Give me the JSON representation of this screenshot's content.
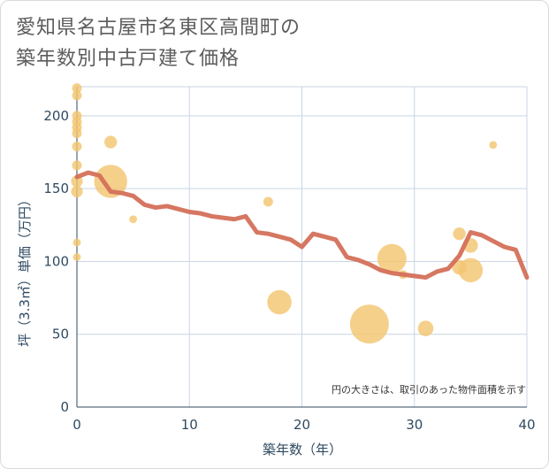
{
  "header": {
    "title_line1": "愛知県名古屋市名東区高間町の",
    "title_line2": "築年数別中古戸建て価格"
  },
  "chart_data": {
    "type": "scatter",
    "xlabel": "築年数（年）",
    "ylabel": "坪（3.3㎡）単価（万円）",
    "xlim": [
      0,
      40
    ],
    "ylim": [
      0,
      220
    ],
    "xticks": [
      "0",
      "10",
      "20",
      "30",
      "40"
    ],
    "yticks": [
      "0",
      "50",
      "100",
      "150",
      "200"
    ],
    "grid": true,
    "note": "円の大きさは、取引のあった物件面積を示す",
    "colors": {
      "bubble": "#f2c46e",
      "line": "#d4705a",
      "grid": "#c9d6e3",
      "text": "#2f4a61"
    },
    "bubbles": [
      {
        "x": 0,
        "y": 219,
        "s": 1
      },
      {
        "x": 0,
        "y": 214,
        "s": 1
      },
      {
        "x": 0,
        "y": 200,
        "s": 1
      },
      {
        "x": 0,
        "y": 196,
        "s": 1
      },
      {
        "x": 0,
        "y": 192,
        "s": 1
      },
      {
        "x": 0,
        "y": 188,
        "s": 1
      },
      {
        "x": 0,
        "y": 179,
        "s": 1
      },
      {
        "x": 0,
        "y": 166,
        "s": 1
      },
      {
        "x": 0,
        "y": 155,
        "s": 1.2
      },
      {
        "x": 0,
        "y": 148,
        "s": 1.2
      },
      {
        "x": 0,
        "y": 113,
        "s": 0.8
      },
      {
        "x": 0,
        "y": 103,
        "s": 0.8
      },
      {
        "x": 3,
        "y": 182,
        "s": 1.3
      },
      {
        "x": 3,
        "y": 155,
        "s": 3.4
      },
      {
        "x": 5,
        "y": 129,
        "s": 0.8
      },
      {
        "x": 17,
        "y": 141,
        "s": 1
      },
      {
        "x": 18,
        "y": 72,
        "s": 2.5
      },
      {
        "x": 26,
        "y": 57,
        "s": 4.0
      },
      {
        "x": 28,
        "y": 102,
        "s": 3.0
      },
      {
        "x": 29,
        "y": 91,
        "s": 0.9
      },
      {
        "x": 31,
        "y": 54,
        "s": 1.6
      },
      {
        "x": 34,
        "y": 119,
        "s": 1.3
      },
      {
        "x": 34,
        "y": 96,
        "s": 1.5
      },
      {
        "x": 35,
        "y": 111,
        "s": 1.5
      },
      {
        "x": 35,
        "y": 94,
        "s": 2.5
      },
      {
        "x": 37,
        "y": 180,
        "s": 0.8
      }
    ],
    "series": [
      {
        "x": [
          0,
          1,
          2,
          3,
          4,
          5,
          6,
          7,
          8,
          9,
          10,
          11,
          12,
          13,
          14,
          15,
          16,
          17,
          18,
          19,
          20,
          21,
          22,
          23,
          24,
          25,
          26,
          27,
          28,
          29,
          30,
          31,
          32,
          33,
          34,
          35,
          36,
          37,
          38,
          39,
          40
        ],
        "values": [
          158,
          161,
          159,
          148,
          147,
          145,
          139,
          137,
          138,
          136,
          134,
          133,
          131,
          130,
          129,
          131,
          120,
          119,
          117,
          115,
          110,
          119,
          117,
          115,
          103,
          101,
          98,
          94,
          92,
          91,
          90,
          89,
          93,
          95,
          104,
          120,
          118,
          114,
          110,
          108,
          89
        ]
      }
    ]
  }
}
